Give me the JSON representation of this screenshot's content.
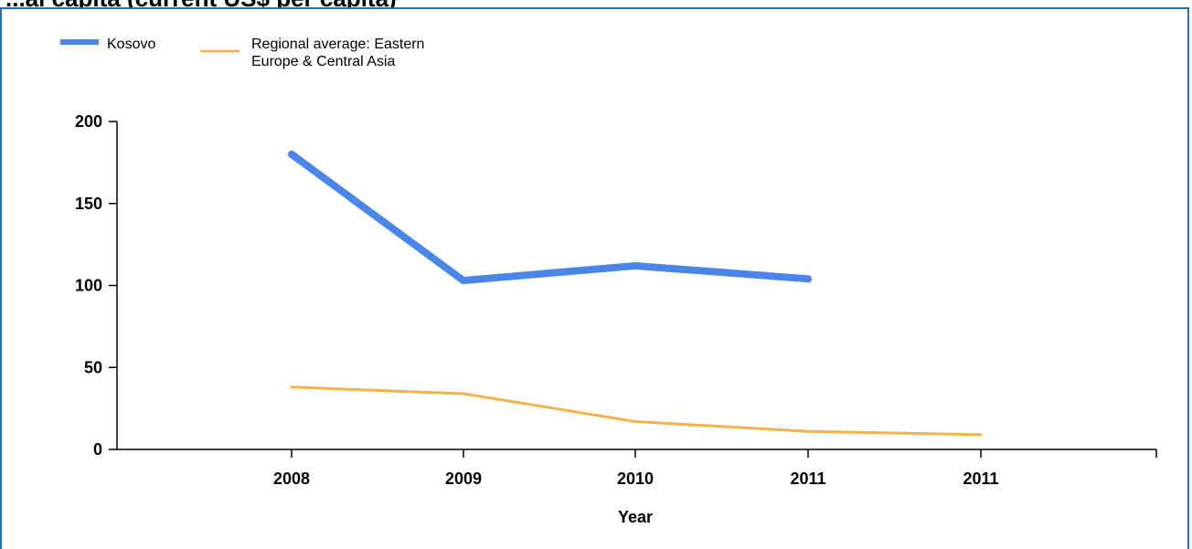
{
  "page_title": "...al capita (current US$ per capita)",
  "chart_data": {
    "type": "line",
    "x_tick_labels": [
      "2008",
      "2009",
      "2010",
      "2011",
      "2011"
    ],
    "xlabel": "Year",
    "ylabel": "",
    "ylim": [
      0,
      200
    ],
    "y_ticks": [
      0,
      50,
      100,
      150,
      200
    ],
    "grid": false,
    "legend_position": "top-left",
    "series": [
      {
        "name": "Kosovo",
        "color": "#4a86e8",
        "values": [
          180,
          103,
          112,
          104,
          null
        ]
      },
      {
        "name": "Regional average: Eastern Europe & Central Asia",
        "color": "#f6b24a",
        "values": [
          38,
          34,
          17,
          11,
          9
        ]
      }
    ]
  }
}
